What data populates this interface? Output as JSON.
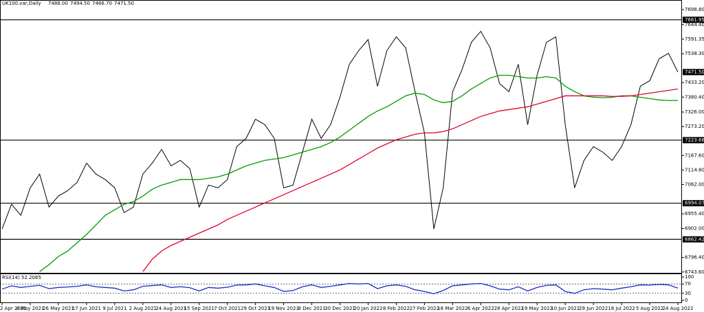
{
  "chart_data": [
    {
      "type": "line",
      "title": "UK100.var,Daily",
      "header_values": [
        "7486.00",
        "7494.50",
        "7466.70",
        "7471.50"
      ],
      "categories": [
        "2 Apr 2021",
        null,
        null,
        "4 May 2021",
        null,
        null,
        "26 May 2021",
        null,
        null,
        "17 Jun 2021",
        null,
        null,
        "9 Jul 2021",
        null,
        null,
        "2 Aug 2021",
        null,
        null,
        "24 Aug 2021",
        null,
        null,
        "15 Sep 2021",
        null,
        null,
        "7 Oct 2021",
        null,
        null,
        "29 Oct 2021",
        null,
        null,
        "19 Nov 2021",
        null,
        null,
        "8 Dec 2021",
        null,
        null,
        "30 Dec 2021",
        null,
        null,
        "20 Jan 2022",
        null,
        null,
        "8 Feb 2022",
        null,
        null,
        "27 Feb 2022",
        null,
        null,
        "18 Mar 2022",
        null,
        null,
        "6 Apr 2022",
        null,
        null,
        "28 Apr 2022",
        null,
        null,
        "19 May 2022",
        null,
        null,
        "10 Jun 2022",
        null,
        null,
        "29 Jun 2022",
        null,
        null,
        "18 Jul 2022",
        null,
        null,
        "5 Aug 2022",
        null,
        null,
        "24 Aug 2022"
      ],
      "series": [
        {
          "color": "#000000",
          "values": [
            6900,
            6990,
            6950,
            7050,
            7100,
            6980,
            7020,
            7040,
            7070,
            7140,
            7100,
            7080,
            7050,
            6960,
            6980,
            7100,
            7140,
            7190,
            7130,
            7150,
            7120,
            6980,
            7060,
            7050,
            7080,
            7200,
            7230,
            7300,
            7280,
            7230,
            7050,
            7060,
            7180,
            7300,
            7230,
            7280,
            7380,
            7500,
            7550,
            7590,
            7420,
            7550,
            7600,
            7560,
            7400,
            7250,
            6900,
            7050,
            7400,
            7480,
            7580,
            7620,
            7560,
            7430,
            7400,
            7500,
            7280,
            7460,
            7580,
            7600,
            7280,
            7050,
            7150,
            7200,
            7180,
            7150,
            7200,
            7280,
            7420,
            7440,
            7520,
            7540,
            7471.5
          ]
        },
        {
          "color": "#009a00",
          "values": [
            null,
            null,
            null,
            null,
            6745,
            6770,
            6800,
            6820,
            6850,
            6880,
            6915,
            6950,
            6970,
            6990,
            7000,
            7020,
            7045,
            7060,
            7070,
            7080,
            7080,
            7080,
            7085,
            7090,
            7100,
            7115,
            7130,
            7140,
            7150,
            7155,
            7160,
            7170,
            7180,
            7190,
            7200,
            7215,
            7235,
            7260,
            7285,
            7310,
            7330,
            7345,
            7365,
            7385,
            7395,
            7390,
            7370,
            7360,
            7365,
            7385,
            7410,
            7430,
            7450,
            7460,
            7460,
            7455,
            7450,
            7450,
            7455,
            7450,
            7420,
            7400,
            7385,
            7380,
            7378,
            7380,
            7385,
            7385,
            7380,
            7375,
            7370,
            7368,
            7368
          ]
        },
        {
          "color": "#e0002a",
          "values": [
            null,
            null,
            null,
            null,
            null,
            null,
            null,
            null,
            null,
            null,
            null,
            null,
            null,
            null,
            null,
            6745,
            6790,
            6820,
            6840,
            6855,
            6870,
            6885,
            6900,
            6915,
            6935,
            6950,
            6965,
            6980,
            6995,
            7010,
            7025,
            7040,
            7055,
            7070,
            7085,
            7100,
            7115,
            7135,
            7155,
            7175,
            7195,
            7210,
            7225,
            7235,
            7245,
            7250,
            7250,
            7255,
            7265,
            7280,
            7295,
            7310,
            7320,
            7330,
            7335,
            7340,
            7345,
            7355,
            7365,
            7375,
            7385,
            7385,
            7385,
            7385,
            7385,
            7383,
            7383,
            7385,
            7390,
            7395,
            7400,
            7405,
            7410
          ]
        }
      ],
      "ylim": [
        6738,
        7734
      ],
      "yticks": [
        {
          "value": 7698.8,
          "label": "7698.80"
        },
        {
          "value": 7644.4,
          "label": "7644.40"
        },
        7591.35,
        {
          "value": 7538.3,
          "label": "7538.30"
        },
        {
          "value": 7433.2,
          "label": "7433.20"
        },
        {
          "value": 7380.4,
          "label": "7380.40"
        },
        {
          "value": 7326,
          "label": "7326.00"
        },
        {
          "value": 7273.2,
          "label": "7273.20"
        },
        {
          "value": 7167.6,
          "label": "7167.60"
        },
        {
          "value": 7114.8,
          "label": "7114.80"
        },
        {
          "value": 7062,
          "label": "7062.00"
        },
        {
          "value": 6955.4,
          "label": "6955.40"
        },
        {
          "value": 6902,
          "label": "6902.00"
        },
        {
          "value": 6796.4,
          "label": "6796.40"
        },
        {
          "value": 6743.6,
          "label": "6743.60"
        }
      ],
      "levels": [
        7661.95,
        7223.66,
        6994.07,
        6862.42
      ],
      "last_price": {
        "value": 7471.5,
        "label": "7471.50"
      }
    },
    {
      "type": "line",
      "title": "RSI(14) 52.2065",
      "series": [
        {
          "color": "#1a2acc",
          "values": [
            48,
            62,
            55,
            60,
            64,
            50,
            55,
            57,
            60,
            66,
            58,
            55,
            52,
            40,
            45,
            60,
            63,
            66,
            55,
            58,
            54,
            40,
            55,
            52,
            56,
            65,
            66,
            70,
            62,
            55,
            38,
            42,
            58,
            66,
            55,
            60,
            66,
            72,
            70,
            72,
            50,
            62,
            66,
            60,
            45,
            38,
            28,
            42,
            62,
            66,
            70,
            72,
            62,
            48,
            45,
            58,
            40,
            55,
            64,
            66,
            38,
            30,
            45,
            50,
            48,
            45,
            52,
            58,
            66,
            65,
            68,
            66,
            52.2065
          ]
        }
      ],
      "ylim": [
        0,
        100
      ],
      "yticks": [
        100,
        70,
        30,
        0
      ],
      "levels": [
        70,
        30
      ]
    }
  ]
}
